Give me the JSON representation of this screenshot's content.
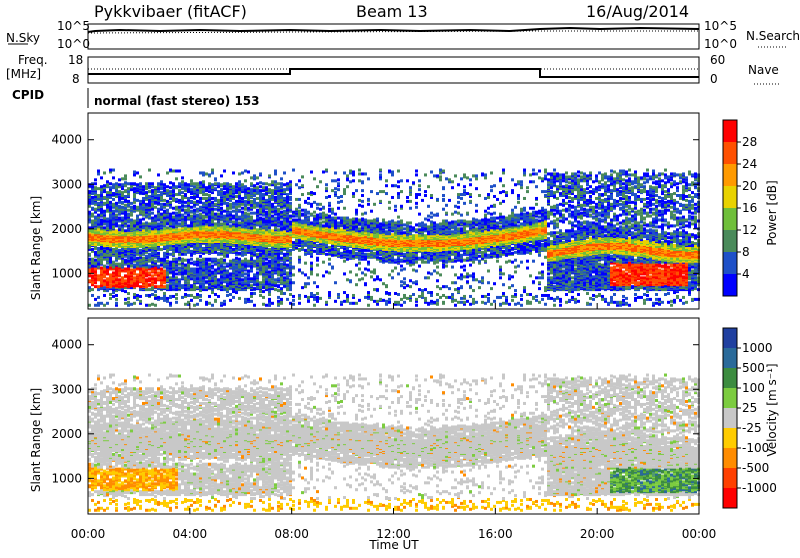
{
  "header": {
    "radar": "Pykkvibaer (fitACF)",
    "beam": "Beam 13",
    "date": "16/Aug/2014"
  },
  "top_panels": {
    "nsky_label": "N.Sky",
    "nsky_ticks": [
      "10^5",
      "10^0"
    ],
    "nsearch_label": "N.Search",
    "nsearch_ticks": [
      "10^5",
      "10^0"
    ],
    "freq_label_1": "Freq.",
    "freq_label_2": "[MHz]",
    "freq_ticks": [
      "18",
      "8"
    ],
    "nave_label": "Nave",
    "nave_ticks": [
      "60",
      "0"
    ],
    "cpid_label": "CPID",
    "cpid_text": "normal (fast stereo) 153"
  },
  "chart_data": [
    {
      "type": "heatmap",
      "name": "power",
      "ylabel": "Slant Range [km]",
      "yticks": [
        "1000",
        "2000",
        "3000",
        "4000"
      ],
      "ylim": [
        200,
        4600
      ],
      "colorbar_label": "Power [dB]",
      "colorbar_ticks": [
        "4",
        "8",
        "12",
        "16",
        "20",
        "24",
        "28"
      ],
      "colorbar_colors": [
        "#0000ff",
        "#1e50c8",
        "#4a8a5a",
        "#6fbf3a",
        "#e8d200",
        "#ff9a00",
        "#ff5000",
        "#ff0000"
      ]
    },
    {
      "type": "heatmap",
      "name": "velocity",
      "ylabel": "Slant Range [km]",
      "yticks": [
        "1000",
        "2000",
        "3000",
        "4000"
      ],
      "ylim": [
        200,
        4600
      ],
      "xlabel": "Time UT",
      "xticks": [
        "00:00",
        "04:00",
        "08:00",
        "12:00",
        "16:00",
        "20:00",
        "00:00"
      ],
      "colorbar_label": "Velocity [m s⁻¹]",
      "colorbar_ticks": [
        "1000",
        "500",
        "100",
        "25",
        "-25",
        "-100",
        "-500",
        "-1000"
      ],
      "colorbar_colors": [
        "#2040a0",
        "#2a6a9a",
        "#3c8c40",
        "#7ccc40",
        "#c8c8c8",
        "#ffcc00",
        "#ff8c00",
        "#ff4000",
        "#ff0000"
      ]
    }
  ]
}
